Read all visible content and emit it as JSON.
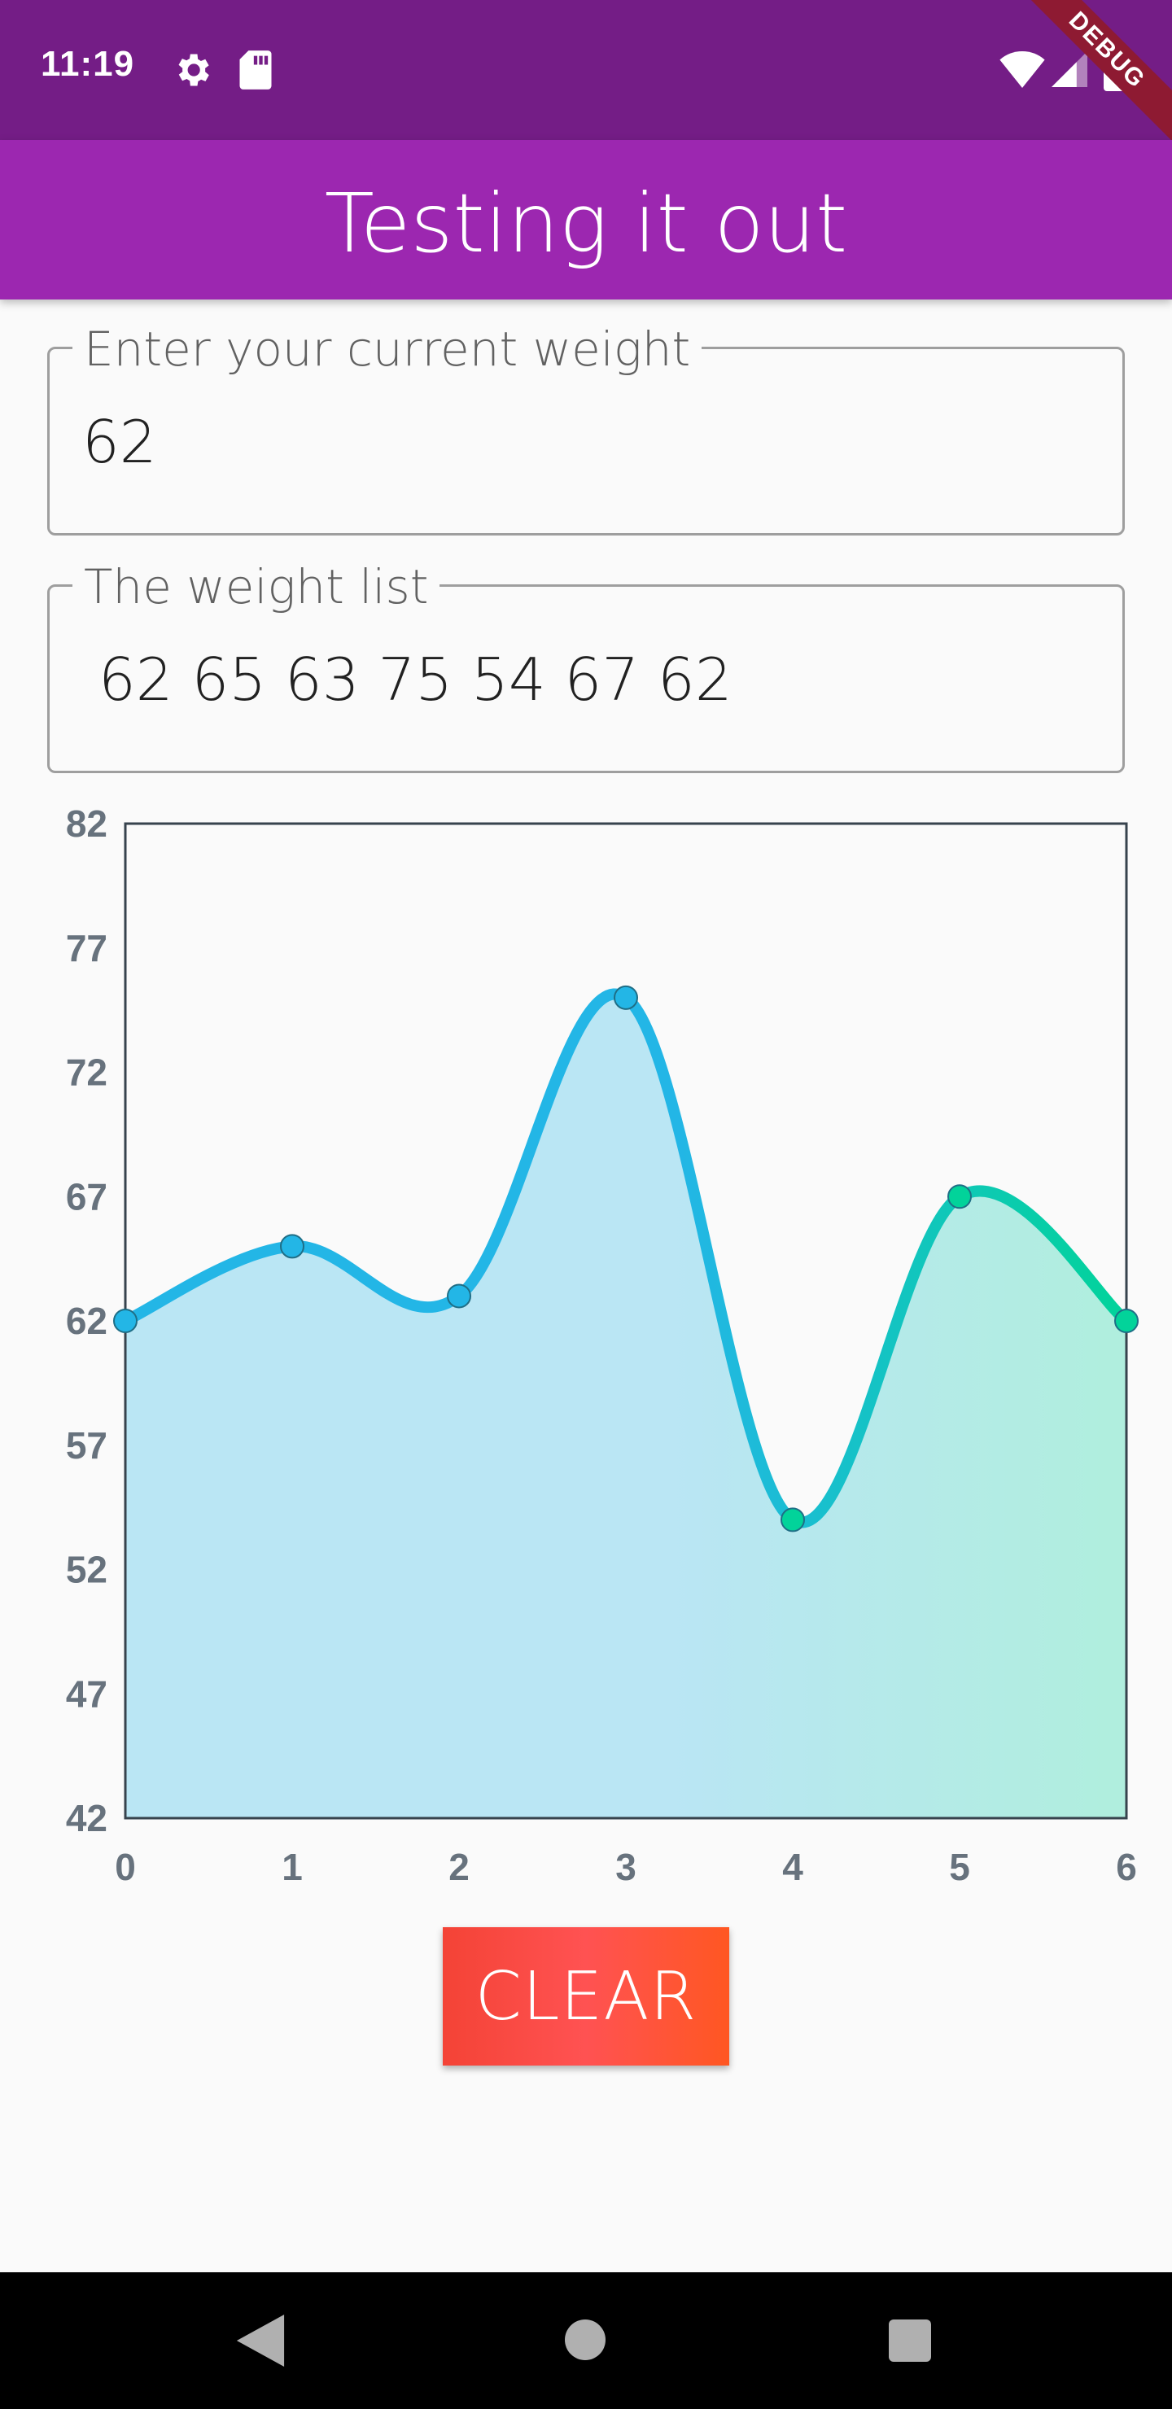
{
  "status_bar": {
    "time": "11:19",
    "icons": [
      "gear-icon",
      "sd-card-icon",
      "wifi-icon",
      "signal-icon",
      "battery-icon"
    ],
    "debug_banner": "DEBUG"
  },
  "app_bar": {
    "title": "Testing it out",
    "color": "#9c27b0"
  },
  "weight_field": {
    "label": "Enter your current weight",
    "value": "62"
  },
  "list_field": {
    "label": "The weight list",
    "value": " 62 65 63 75 54 67 62"
  },
  "chart_data": {
    "type": "area",
    "x": [
      0,
      1,
      2,
      3,
      4,
      5,
      6
    ],
    "series": [
      {
        "values": [
          62,
          65,
          63,
          75,
          54,
          67,
          62
        ]
      }
    ],
    "ylim": [
      42,
      82
    ],
    "xlim": [
      0,
      6
    ],
    "y_ticks": [
      "42",
      "47",
      "52",
      "57",
      "62",
      "67",
      "72",
      "77",
      "82"
    ],
    "x_ticks": [
      "0",
      "1",
      "2",
      "3",
      "4",
      "5",
      "6"
    ],
    "grid": false,
    "curved": true,
    "colors": {
      "start": "#23b6e6",
      "end": "#02d39a"
    }
  },
  "clear_button": {
    "label": "CLEAR"
  },
  "nav_bar": {
    "icons": [
      "back-icon",
      "home-icon",
      "recent-apps-icon"
    ]
  }
}
